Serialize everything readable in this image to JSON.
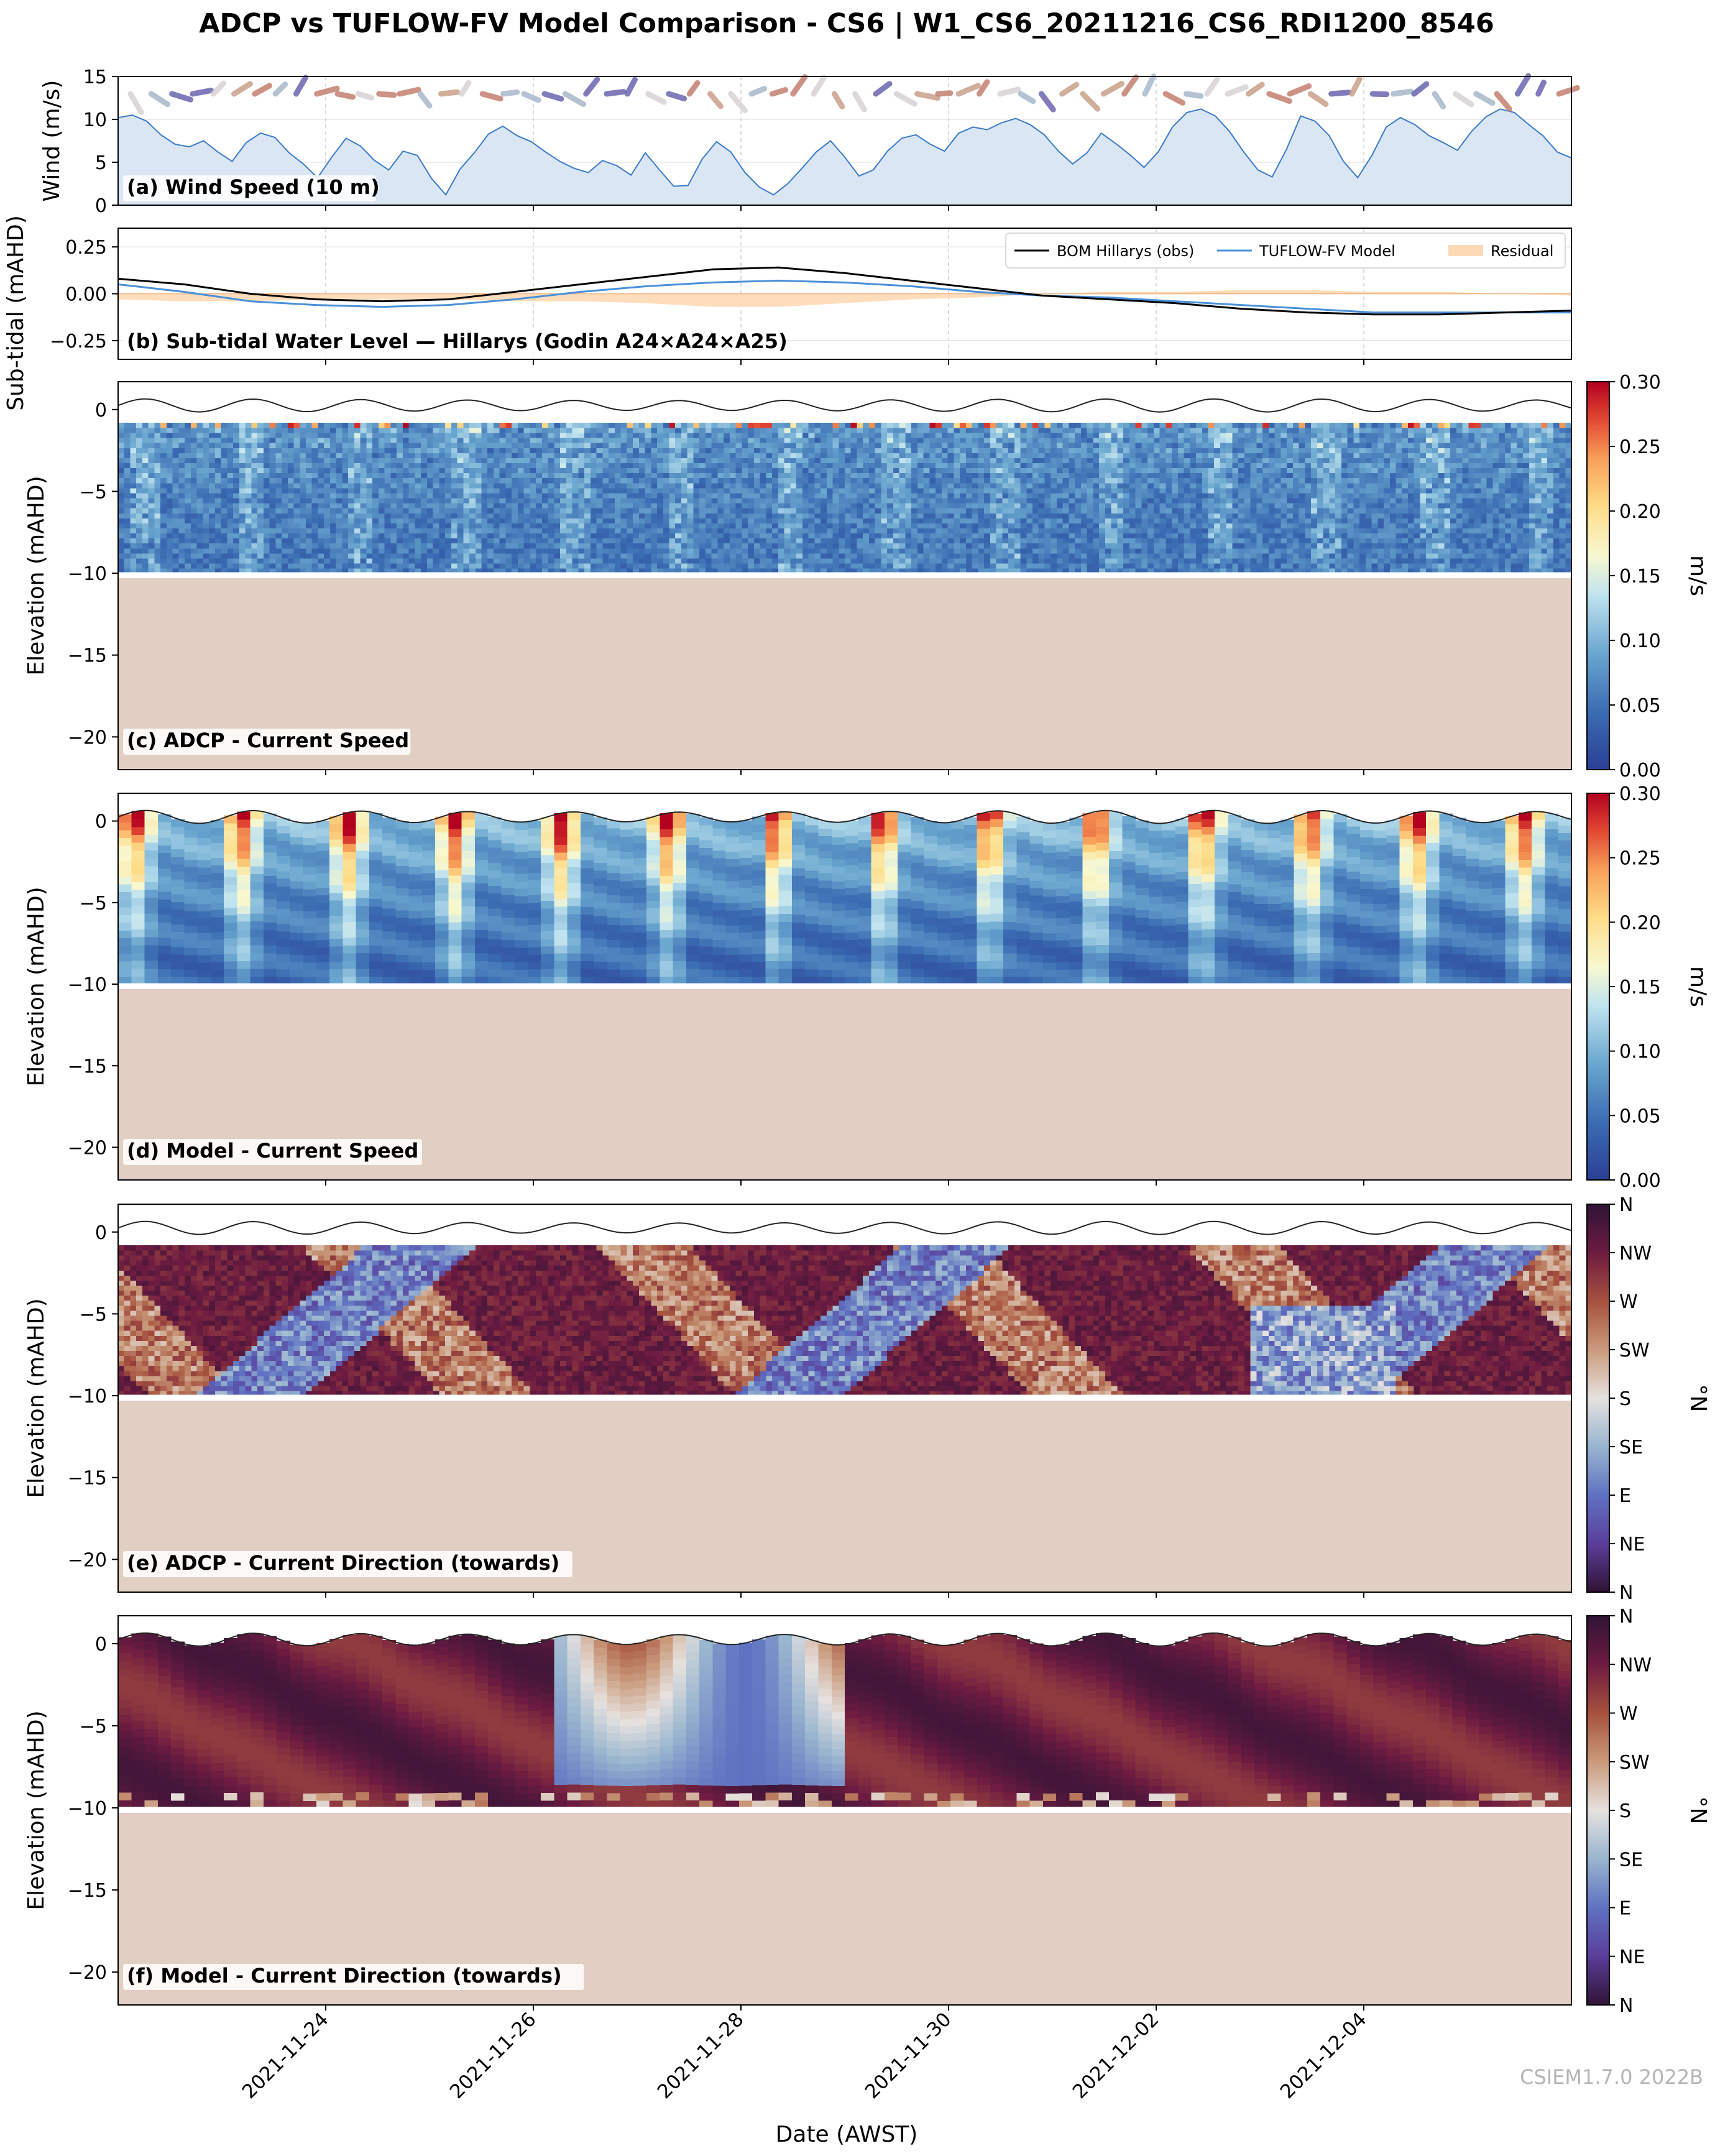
{
  "figure": {
    "title": "ADCP vs TUFLOW-FV Model Comparison - CS6 | W1_CS6_20211216_CS6_RDI1200_8546",
    "xlabel": "Date (AWST)",
    "watermark": "CSIEM1.7.0 2022B"
  },
  "chart_data": [
    {
      "id": "a",
      "type": "area",
      "label": "(a) Wind Speed (10 m)",
      "ylabel": "Wind (m/s)",
      "ylim": [
        0,
        15
      ],
      "yticks": [
        "0",
        "5",
        "10",
        "15"
      ],
      "x_range": [
        "2021-11-22T00:00",
        "2021-12-06T00:00"
      ],
      "series": [
        {
          "values": [
            10.2,
            10.5,
            9.8,
            8.2,
            7.1,
            6.8,
            7.5,
            6.2,
            5.1,
            7.3,
            8.4,
            7.9,
            6.1,
            4.8,
            3.2,
            5.6,
            7.8,
            6.9,
            5.2,
            4.1,
            6.3,
            5.8,
            3.1,
            1.2,
            4.2,
            6.1,
            8.3,
            9.2,
            8.1,
            7.4,
            6.2,
            5.1,
            4.3,
            3.8,
            5.2,
            4.6,
            3.5,
            6.1,
            4.1,
            2.2,
            2.3,
            5.4,
            7.4,
            6.2,
            3.8,
            2.1,
            1.2,
            2.5,
            4.3,
            6.2,
            7.5,
            5.6,
            3.4,
            4.1,
            6.3,
            7.8,
            8.2,
            7.1,
            6.3,
            8.4,
            9.1,
            8.8,
            9.6,
            10.1,
            9.4,
            8.2,
            6.3,
            4.8,
            6.1,
            8.4,
            7.2,
            5.9,
            4.4,
            6.2,
            9.1,
            10.8,
            11.2,
            10.4,
            8.6,
            6.2,
            4.1,
            3.3,
            6.5,
            10.4,
            9.8,
            8.1,
            5.1,
            3.2,
            5.8,
            9.1,
            10.2,
            9.4,
            8.1,
            7.3,
            6.4,
            8.6,
            10.3,
            11.2,
            10.8,
            9.4,
            8.1,
            6.2,
            5.5
          ]
        }
      ],
      "wind_direction_arrows": "present"
    },
    {
      "id": "b",
      "type": "line",
      "label": "(b) Sub-tidal Water Level — Hillarys (Godin A24×A24×A25)",
      "ylabel": "Sub-tidal (mAHD)",
      "ylim": [
        -0.35,
        0.35
      ],
      "yticks": [
        "−0.25",
        "0.00",
        "0.25"
      ],
      "legend": [
        "BOM Hillarys (obs)",
        "TUFLOW-FV Model",
        "Residual"
      ],
      "legend_position": "top-right",
      "series": [
        {
          "name": "BOM Hillarys (obs)",
          "color": "#000000",
          "values": [
            0.08,
            0.05,
            0.0,
            -0.03,
            -0.04,
            -0.03,
            0.01,
            0.05,
            0.09,
            0.13,
            0.14,
            0.11,
            0.07,
            0.03,
            -0.01,
            -0.03,
            -0.05,
            -0.08,
            -0.1,
            -0.11,
            -0.11,
            -0.1,
            -0.09
          ]
        },
        {
          "name": "TUFLOW-FV Model",
          "color": "#4a90d9",
          "values": [
            0.05,
            0.01,
            -0.04,
            -0.06,
            -0.07,
            -0.06,
            -0.03,
            0.01,
            0.04,
            0.06,
            0.07,
            0.06,
            0.04,
            0.01,
            -0.01,
            -0.02,
            -0.04,
            -0.06,
            -0.08,
            -0.1,
            -0.1,
            -0.1,
            -0.1
          ]
        },
        {
          "name": "Residual",
          "color": "#fdd9b5"
        }
      ]
    },
    {
      "id": "c",
      "type": "heatmap",
      "label": "(c) ADCP - Current Speed",
      "ylabel": "Elevation (mAHD)",
      "yticks": [
        "0",
        "−5",
        "−10",
        "−15",
        "−20"
      ],
      "colorbar_label": "m/s",
      "colorbar_ticks": [
        "0.30",
        "0.25",
        "0.20",
        "0.15",
        "0.10",
        "0.05",
        "0.00"
      ],
      "vmin": 0.0,
      "vmax": 0.3,
      "bed_elevation": -10.3
    },
    {
      "id": "d",
      "type": "heatmap",
      "label": "(d) Model - Current Speed",
      "ylabel": "Elevation (mAHD)",
      "yticks": [
        "0",
        "−5",
        "−10",
        "−15",
        "−20"
      ],
      "colorbar_label": "m/s",
      "colorbar_ticks": [
        "0.30",
        "0.25",
        "0.20",
        "0.15",
        "0.10",
        "0.05",
        "0.00"
      ],
      "vmin": 0.0,
      "vmax": 0.3,
      "bed_elevation": -10.3
    },
    {
      "id": "e",
      "type": "heatmap",
      "label": "(e) ADCP - Current Direction (towards)",
      "ylabel": "Elevation (mAHD)",
      "yticks": [
        "0",
        "−5",
        "−10",
        "−15",
        "−20"
      ],
      "colorbar_label": "°N",
      "colorbar_ticks": [
        "N",
        "NW",
        "W",
        "SW",
        "S",
        "SE",
        "E",
        "NE",
        "N"
      ],
      "bed_elevation": -10.3
    },
    {
      "id": "f",
      "type": "heatmap",
      "label": "(f) Model - Current Direction (towards)",
      "ylabel": "Elevation (mAHD)",
      "yticks": [
        "0",
        "−5",
        "−10",
        "−15",
        "−20"
      ],
      "colorbar_label": "°N",
      "colorbar_ticks": [
        "N",
        "NW",
        "W",
        "SW",
        "S",
        "SE",
        "E",
        "NE",
        "N"
      ],
      "bed_elevation": -10.3
    }
  ],
  "x_ticks": [
    "2021-11-24",
    "2021-11-26",
    "2021-11-28",
    "2021-11-30",
    "2021-12-02",
    "2021-12-04"
  ],
  "colors": {
    "bed": "#e0cfc2",
    "wind_fill": "#dbe6f5",
    "wind_line": "#3a7bc8",
    "residual": "#fdd9b5"
  }
}
